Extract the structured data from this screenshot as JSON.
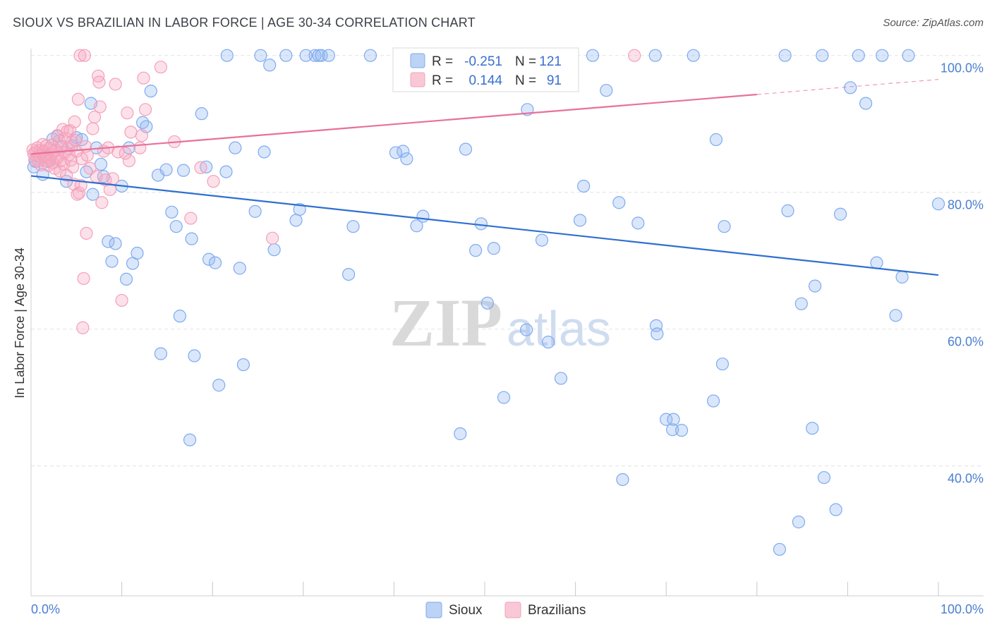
{
  "header": {
    "title": "SIOUX VS BRAZILIAN IN LABOR FORCE | AGE 30-34 CORRELATION CHART",
    "source": "Source: ZipAtlas.com"
  },
  "watermark": {
    "zip": "ZIP",
    "atlas": "atlas"
  },
  "colors": {
    "sioux": "#7eaaf0",
    "sioux_line": "#2f6fd0",
    "brazilians": "#f4a0b8",
    "brazilians_line": "#e8709a",
    "axis_text": "#4a7fd0",
    "grid": "#e2e2e2"
  },
  "chart_data": {
    "type": "scatter",
    "xlabel": "",
    "ylabel": "In Labor Force | Age 30-34",
    "xlim": [
      0,
      100
    ],
    "ylim": [
      21,
      101
    ],
    "y_ticks": [
      {
        "value": 100,
        "label": "100.0%"
      },
      {
        "value": 80,
        "label": "80.0%"
      },
      {
        "value": 60,
        "label": "60.0%"
      },
      {
        "value": 40,
        "label": "40.0%"
      }
    ],
    "x_tick_labels": {
      "left": "0.0%",
      "right": "100.0%"
    },
    "grid": true,
    "legend_placement": "top-center",
    "stats": [
      {
        "series": "Sioux",
        "r_label": "R =",
        "r": "-0.251",
        "n_label": "N =",
        "n": "121"
      },
      {
        "series": "Brazilians",
        "r_label": "R =",
        "r": "0.144",
        "n_label": "N =",
        "n": "91"
      }
    ],
    "series": [
      {
        "name": "Sioux",
        "trend": {
          "x": [
            0,
            100
          ],
          "y": [
            82.4,
            67.9
          ]
        },
        "points": [
          [
            0.3,
            83.7
          ],
          [
            0.5,
            84.5
          ],
          [
            1.3,
            82.6
          ],
          [
            1.9,
            84.5
          ],
          [
            2.4,
            87.8
          ],
          [
            2.9,
            88.2
          ],
          [
            3.4,
            86.6
          ],
          [
            3.9,
            81.6
          ],
          [
            4.5,
            86.8
          ],
          [
            5.0,
            88.0
          ],
          [
            5.6,
            87.7
          ],
          [
            6.1,
            83.0
          ],
          [
            6.6,
            93.0
          ],
          [
            6.8,
            79.7
          ],
          [
            7.2,
            86.5
          ],
          [
            7.7,
            84.1
          ],
          [
            8.0,
            82.3
          ],
          [
            8.5,
            72.8
          ],
          [
            8.9,
            69.9
          ],
          [
            9.3,
            72.5
          ],
          [
            10.0,
            80.9
          ],
          [
            10.5,
            67.3
          ],
          [
            10.8,
            86.5
          ],
          [
            11.2,
            69.6
          ],
          [
            11.7,
            71.1
          ],
          [
            12.3,
            90.2
          ],
          [
            12.7,
            89.6
          ],
          [
            13.2,
            94.8
          ],
          [
            14.0,
            82.5
          ],
          [
            14.3,
            56.4
          ],
          [
            14.9,
            83.3
          ],
          [
            15.5,
            77.1
          ],
          [
            16.0,
            75.0
          ],
          [
            16.4,
            61.9
          ],
          [
            16.8,
            83.2
          ],
          [
            17.5,
            43.8
          ],
          [
            17.7,
            73.2
          ],
          [
            18.0,
            56.1
          ],
          [
            18.8,
            91.5
          ],
          [
            19.3,
            83.7
          ],
          [
            19.6,
            70.2
          ],
          [
            20.3,
            69.7
          ],
          [
            20.7,
            51.8
          ],
          [
            21.5,
            83.0
          ],
          [
            21.6,
            100.0
          ],
          [
            22.5,
            86.5
          ],
          [
            23.0,
            68.9
          ],
          [
            23.4,
            54.8
          ],
          [
            24.7,
            77.2
          ],
          [
            25.3,
            100.0
          ],
          [
            25.7,
            85.9
          ],
          [
            26.3,
            98.6
          ],
          [
            26.8,
            71.6
          ],
          [
            28.1,
            100.0
          ],
          [
            29.2,
            75.9
          ],
          [
            29.6,
            77.5
          ],
          [
            30.3,
            100.0
          ],
          [
            31.3,
            100.0
          ],
          [
            31.7,
            100.0
          ],
          [
            32.0,
            100.0
          ],
          [
            32.8,
            100.0
          ],
          [
            35.0,
            68.0
          ],
          [
            35.5,
            75.0
          ],
          [
            37.4,
            100.0
          ],
          [
            40.2,
            85.8
          ],
          [
            41.0,
            86.0
          ],
          [
            41.4,
            84.9
          ],
          [
            42.5,
            75.1
          ],
          [
            43.2,
            76.5
          ],
          [
            47.3,
            44.7
          ],
          [
            47.9,
            86.3
          ],
          [
            48.2,
            100.0
          ],
          [
            49.0,
            71.5
          ],
          [
            49.6,
            75.4
          ],
          [
            50.3,
            63.8
          ],
          [
            51.0,
            71.8
          ],
          [
            52.1,
            50.0
          ],
          [
            54.6,
            59.9
          ],
          [
            54.7,
            92.1
          ],
          [
            54.8,
            100.0
          ],
          [
            56.3,
            73.0
          ],
          [
            57.0,
            58.1
          ],
          [
            57.2,
            100.0
          ],
          [
            57.8,
            100.0
          ],
          [
            58.4,
            52.8
          ],
          [
            60.5,
            75.9
          ],
          [
            60.9,
            80.9
          ],
          [
            61.9,
            100.0
          ],
          [
            63.4,
            94.9
          ],
          [
            64.8,
            78.5
          ],
          [
            65.2,
            38.0
          ],
          [
            66.9,
            75.5
          ],
          [
            68.8,
            100.0
          ],
          [
            68.9,
            60.5
          ],
          [
            69.0,
            59.3
          ],
          [
            70.0,
            46.8
          ],
          [
            70.7,
            45.3
          ],
          [
            70.8,
            46.8
          ],
          [
            71.7,
            45.2
          ],
          [
            73.0,
            100.0
          ],
          [
            75.2,
            49.5
          ],
          [
            75.5,
            87.7
          ],
          [
            76.2,
            54.9
          ],
          [
            76.4,
            75.0
          ],
          [
            82.5,
            27.8
          ],
          [
            83.1,
            100.0
          ],
          [
            83.4,
            77.3
          ],
          [
            84.6,
            31.8
          ],
          [
            84.9,
            63.7
          ],
          [
            86.1,
            45.5
          ],
          [
            86.4,
            66.3
          ],
          [
            87.2,
            100.0
          ],
          [
            87.4,
            38.3
          ],
          [
            88.7,
            33.6
          ],
          [
            89.2,
            76.8
          ],
          [
            90.3,
            95.3
          ],
          [
            91.2,
            100.0
          ],
          [
            92.0,
            93.0
          ],
          [
            93.2,
            69.7
          ],
          [
            93.8,
            100.0
          ],
          [
            95.3,
            62.0
          ],
          [
            96.0,
            67.6
          ],
          [
            96.7,
            100.0
          ],
          [
            100.0,
            78.3
          ]
        ]
      },
      {
        "name": "Brazilians",
        "trend": {
          "x": [
            0,
            80
          ],
          "y": [
            85.6,
            94.3
          ]
        },
        "trend_dashed": {
          "x": [
            80,
            100
          ],
          "y": [
            94.3,
            96.5
          ]
        },
        "points": [
          [
            0.2,
            86.2
          ],
          [
            0.3,
            85.6
          ],
          [
            0.4,
            84.7
          ],
          [
            0.5,
            85.9
          ],
          [
            0.7,
            86.5
          ],
          [
            0.8,
            84.5
          ],
          [
            0.9,
            85.3
          ],
          [
            1.0,
            86.1
          ],
          [
            1.1,
            84.0
          ],
          [
            1.2,
            85.7
          ],
          [
            1.3,
            87.0
          ],
          [
            1.4,
            86.0
          ],
          [
            1.5,
            85.2
          ],
          [
            1.6,
            84.6
          ],
          [
            1.7,
            86.8
          ],
          [
            1.8,
            85.1
          ],
          [
            1.9,
            83.9
          ],
          [
            2.0,
            86.4
          ],
          [
            2.1,
            84.8
          ],
          [
            2.2,
            85.5
          ],
          [
            2.3,
            86.9
          ],
          [
            2.4,
            84.3
          ],
          [
            2.5,
            85.9
          ],
          [
            2.6,
            83.5
          ],
          [
            2.7,
            86.2
          ],
          [
            2.8,
            84.9
          ],
          [
            2.9,
            88.3
          ],
          [
            3.0,
            85.2
          ],
          [
            3.1,
            87.5
          ],
          [
            3.2,
            83.1
          ],
          [
            3.3,
            84.6
          ],
          [
            3.4,
            86.7
          ],
          [
            3.5,
            89.2
          ],
          [
            3.6,
            84.1
          ],
          [
            3.7,
            85.8
          ],
          [
            3.8,
            87.9
          ],
          [
            3.9,
            82.5
          ],
          [
            4.0,
            88.9
          ],
          [
            4.1,
            86.4
          ],
          [
            4.2,
            85.5
          ],
          [
            4.3,
            89.0
          ],
          [
            4.4,
            84.7
          ],
          [
            4.5,
            87.3
          ],
          [
            4.6,
            83.7
          ],
          [
            4.7,
            81.2
          ],
          [
            4.8,
            90.3
          ],
          [
            4.9,
            87.6
          ],
          [
            5.0,
            86.0
          ],
          [
            5.1,
            79.7
          ],
          [
            5.2,
            93.6
          ],
          [
            5.3,
            79.9
          ],
          [
            5.4,
            100.0
          ],
          [
            5.5,
            81.0
          ],
          [
            5.6,
            84.9
          ],
          [
            5.7,
            60.2
          ],
          [
            5.8,
            67.4
          ],
          [
            5.9,
            100.0
          ],
          [
            6.0,
            86.7
          ],
          [
            6.1,
            74.0
          ],
          [
            6.2,
            85.4
          ],
          [
            6.5,
            83.5
          ],
          [
            6.8,
            89.3
          ],
          [
            7.0,
            91.0
          ],
          [
            7.2,
            82.3
          ],
          [
            7.4,
            97.0
          ],
          [
            7.5,
            96.1
          ],
          [
            7.6,
            92.5
          ],
          [
            7.8,
            78.5
          ],
          [
            8.0,
            86.0
          ],
          [
            8.2,
            81.8
          ],
          [
            8.5,
            86.5
          ],
          [
            8.7,
            80.4
          ],
          [
            9.0,
            82.0
          ],
          [
            9.3,
            95.8
          ],
          [
            9.6,
            85.9
          ],
          [
            10.0,
            64.2
          ],
          [
            10.4,
            85.7
          ],
          [
            10.6,
            91.6
          ],
          [
            10.8,
            84.6
          ],
          [
            11.0,
            88.8
          ],
          [
            12.0,
            86.5
          ],
          [
            12.2,
            88.3
          ],
          [
            12.4,
            96.7
          ],
          [
            12.6,
            92.1
          ],
          [
            14.3,
            98.3
          ],
          [
            15.8,
            87.4
          ],
          [
            17.6,
            76.2
          ],
          [
            18.7,
            83.6
          ],
          [
            20.1,
            81.6
          ],
          [
            26.6,
            73.3
          ],
          [
            66.5,
            100.0
          ]
        ]
      }
    ]
  },
  "bottom_legend": [
    {
      "label": "Sioux"
    },
    {
      "label": "Brazilians"
    }
  ]
}
